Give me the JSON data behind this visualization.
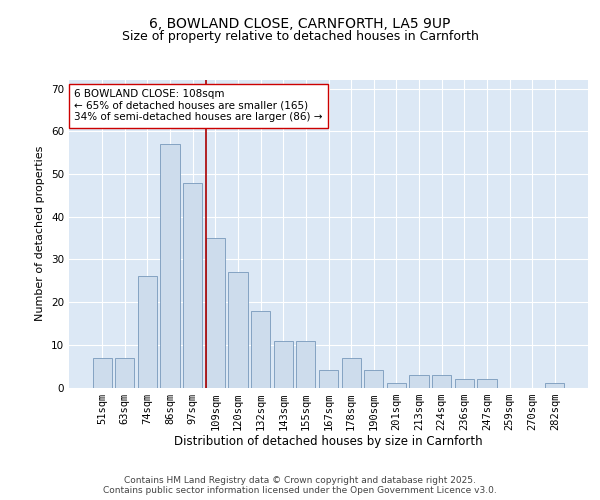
{
  "title1": "6, BOWLAND CLOSE, CARNFORTH, LA5 9UP",
  "title2": "Size of property relative to detached houses in Carnforth",
  "xlabel": "Distribution of detached houses by size in Carnforth",
  "ylabel": "Number of detached properties",
  "categories": [
    "51sqm",
    "63sqm",
    "74sqm",
    "86sqm",
    "97sqm",
    "109sqm",
    "120sqm",
    "132sqm",
    "143sqm",
    "155sqm",
    "167sqm",
    "178sqm",
    "190sqm",
    "201sqm",
    "213sqm",
    "224sqm",
    "236sqm",
    "247sqm",
    "259sqm",
    "270sqm",
    "282sqm"
  ],
  "values": [
    7,
    7,
    26,
    57,
    48,
    35,
    27,
    18,
    11,
    11,
    4,
    7,
    4,
    1,
    3,
    3,
    2,
    2,
    0,
    0,
    1
  ],
  "bar_color": "#cddcec",
  "bar_edge_color": "#7799bb",
  "marker_index": 5,
  "marker_color": "#aa0000",
  "annotation_text": "6 BOWLAND CLOSE: 108sqm\n← 65% of detached houses are smaller (165)\n34% of semi-detached houses are larger (86) →",
  "annotation_box_color": "#ffffff",
  "annotation_box_edge_color": "#cc0000",
  "ylim": [
    0,
    72
  ],
  "yticks": [
    0,
    10,
    20,
    30,
    40,
    50,
    60,
    70
  ],
  "background_color": "#dce8f5",
  "footer_text": "Contains HM Land Registry data © Crown copyright and database right 2025.\nContains public sector information licensed under the Open Government Licence v3.0.",
  "title1_fontsize": 10,
  "title2_fontsize": 9,
  "xlabel_fontsize": 8.5,
  "ylabel_fontsize": 8,
  "tick_fontsize": 7.5,
  "annotation_fontsize": 7.5,
  "footer_fontsize": 6.5
}
